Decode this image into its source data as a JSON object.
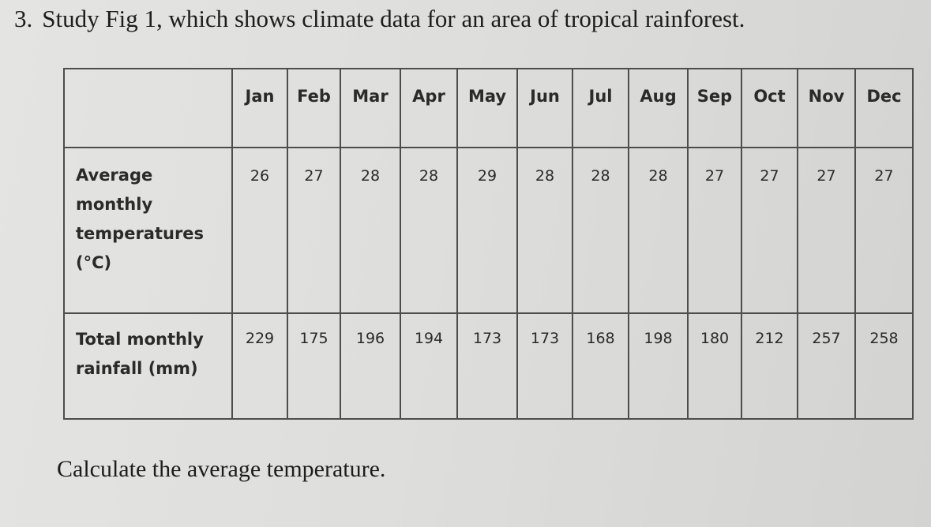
{
  "question": {
    "number": "3.",
    "text": "Study Fig 1, which shows climate data for an area of tropical rainforest."
  },
  "table": {
    "months": [
      "Jan",
      "Feb",
      "Mar",
      "Apr",
      "May",
      "Jun",
      "Jul",
      "Aug",
      "Sep",
      "Oct",
      "Nov",
      "Dec"
    ],
    "rows": [
      {
        "label": "Average monthly temperatures (°C)",
        "values": [
          "26",
          "27",
          "28",
          "28",
          "29",
          "28",
          "28",
          "28",
          "27",
          "27",
          "27",
          "27"
        ]
      },
      {
        "label": "Total monthly rainfall (mm)",
        "values": [
          "229",
          "175",
          "196",
          "194",
          "173",
          "173",
          "168",
          "198",
          "180",
          "212",
          "257",
          "258"
        ]
      }
    ]
  },
  "prompt": "Calculate the average temperature."
}
